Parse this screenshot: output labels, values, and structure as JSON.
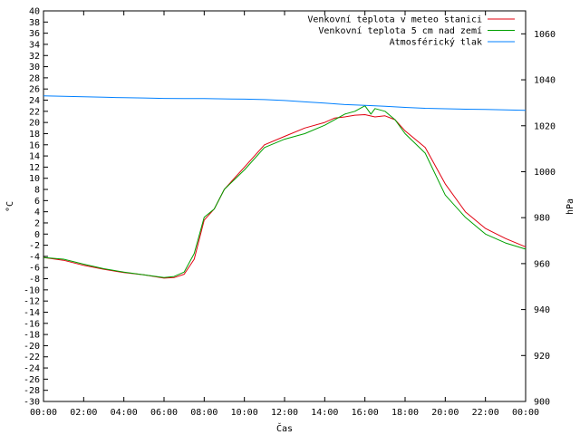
{
  "chart_data": {
    "type": "line",
    "xlabel": "Čas",
    "ylabel_left": "°C",
    "ylabel_right": "hPa",
    "ylim_left": [
      -30,
      40
    ],
    "ylim_right": [
      900,
      1070
    ],
    "xlim_hours": [
      0,
      24
    ],
    "x_tick_labels": [
      "00:00",
      "02:00",
      "04:00",
      "06:00",
      "08:00",
      "10:00",
      "12:00",
      "14:00",
      "16:00",
      "18:00",
      "20:00",
      "22:00",
      "00:00"
    ],
    "y_left_ticks": [
      -30,
      -28,
      -26,
      -24,
      -22,
      -20,
      -18,
      -16,
      -14,
      -12,
      -10,
      -8,
      -6,
      -4,
      -2,
      0,
      2,
      4,
      6,
      8,
      10,
      12,
      14,
      16,
      18,
      20,
      22,
      24,
      26,
      28,
      30,
      32,
      34,
      36,
      38,
      40
    ],
    "y_right_ticks": [
      900,
      920,
      940,
      960,
      980,
      1000,
      1020,
      1040,
      1060
    ],
    "grid": false,
    "legend_position": "top-right",
    "series": [
      {
        "name": "Venkovní teplota v meteo stanici",
        "axis": "left",
        "color": "#e0000f",
        "x": [
          0,
          1,
          2,
          3,
          4,
          5,
          6,
          6.5,
          7,
          7.5,
          8,
          8.5,
          9,
          10,
          11,
          12,
          13,
          14,
          14.5,
          15,
          15.5,
          16,
          16.5,
          17,
          17.5,
          18,
          19,
          20,
          21,
          22,
          23,
          24
        ],
        "y": [
          -4.2,
          -4.7,
          -5.6,
          -6.3,
          -6.9,
          -7.3,
          -7.9,
          -7.8,
          -7.2,
          -4.5,
          2.5,
          4.5,
          8,
          12,
          16,
          17.5,
          19,
          20,
          20.8,
          21,
          21.3,
          21.4,
          21,
          21.2,
          20.5,
          18.5,
          15.5,
          9,
          4,
          1,
          -0.8,
          -2.3
        ]
      },
      {
        "name": "Venkovní teplota 5 cm nad zemí",
        "axis": "left",
        "color": "#00a000",
        "x": [
          0,
          1,
          2,
          3,
          4,
          5,
          6,
          6.5,
          7,
          7.5,
          8,
          8.5,
          9,
          10,
          11,
          12,
          13,
          14,
          14.5,
          15,
          15.5,
          16,
          16.3,
          16.5,
          17,
          17.5,
          18,
          19,
          20,
          21,
          22,
          23,
          24
        ],
        "y": [
          -4.2,
          -4.5,
          -5.4,
          -6.2,
          -6.8,
          -7.3,
          -7.8,
          -7.6,
          -6.8,
          -3.5,
          3,
          4.5,
          8,
          11.5,
          15.5,
          17,
          18,
          19.5,
          20.5,
          21.5,
          22,
          23,
          21.5,
          22.5,
          22,
          20.5,
          18,
          14.5,
          7,
          3,
          0,
          -1.6,
          -2.7
        ]
      },
      {
        "name": "Atmosférický tlak",
        "axis": "right",
        "color": "#0080ff",
        "x": [
          0,
          1,
          2,
          3,
          4,
          5,
          6,
          7,
          8,
          9,
          10,
          11,
          12,
          13,
          14,
          15,
          16,
          17,
          18,
          19,
          20,
          21,
          22,
          23,
          24
        ],
        "y": [
          1033,
          1032.8,
          1032.6,
          1032.4,
          1032.2,
          1032.1,
          1031.9,
          1031.8,
          1031.8,
          1031.7,
          1031.6,
          1031.4,
          1031,
          1030.4,
          1029.9,
          1029.2,
          1028.9,
          1028.5,
          1028,
          1027.6,
          1027.4,
          1027.2,
          1027.1,
          1026.9,
          1026.7
        ]
      }
    ]
  }
}
